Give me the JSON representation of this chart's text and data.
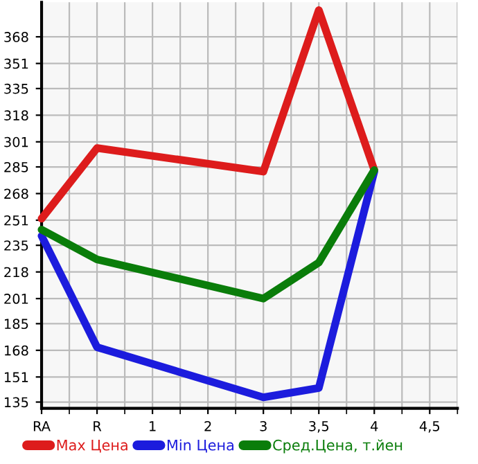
{
  "chart_data": {
    "type": "line",
    "categories": [
      "RA",
      "R",
      "1",
      "2",
      "3",
      "3,5",
      "4",
      "4,5"
    ],
    "series": [
      {
        "name": "Max Цена",
        "color": "#dd1c1c",
        "values": [
          252,
          297,
          null,
          null,
          282,
          385,
          283,
          null
        ]
      },
      {
        "name": "Min Цена",
        "color": "#1c1cdd",
        "values": [
          241,
          170,
          null,
          null,
          138,
          144,
          282,
          null
        ]
      },
      {
        "name": "Сред.Цена, т.йен",
        "color": "#0a7d0a",
        "values": [
          245,
          226,
          null,
          null,
          201,
          224,
          283,
          null
        ]
      }
    ],
    "ylim": [
      131,
      390
    ],
    "yticks": [
      135,
      151,
      168,
      185,
      201,
      218,
      235,
      251,
      268,
      285,
      301,
      318,
      335,
      351,
      368
    ],
    "grid": true,
    "legend": "bottom",
    "marker": "none",
    "line_style": "solid"
  }
}
